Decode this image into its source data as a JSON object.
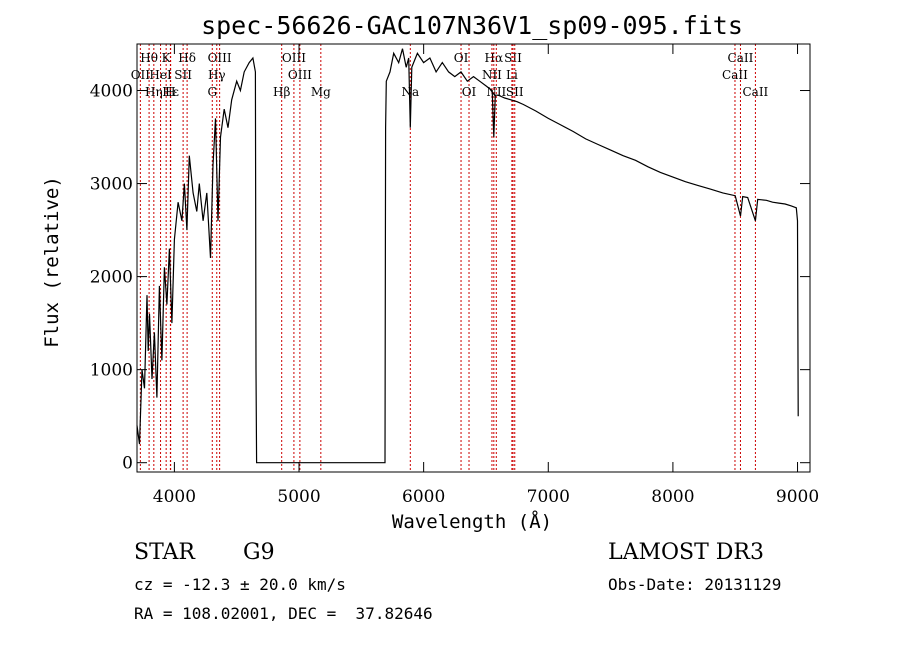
{
  "chart_data": {
    "type": "line",
    "title": "spec-56626-GAC107N36V1_sp09-095.fits",
    "xlabel": "Wavelength (Å)",
    "ylabel": "Flux (relative)",
    "xlim": [
      3700,
      9100
    ],
    "ylim": [
      -100,
      4500
    ],
    "xticks": [
      4000,
      5000,
      6000,
      7000,
      8000,
      9000
    ],
    "yticks": [
      0,
      1000,
      2000,
      3000,
      4000
    ],
    "series": [
      {
        "name": "flux",
        "points": [
          [
            3700,
            400
          ],
          [
            3720,
            200
          ],
          [
            3740,
            1000
          ],
          [
            3760,
            800
          ],
          [
            3780,
            1800
          ],
          [
            3790,
            1200
          ],
          [
            3800,
            1600
          ],
          [
            3820,
            900
          ],
          [
            3840,
            1400
          ],
          [
            3860,
            700
          ],
          [
            3880,
            1900
          ],
          [
            3900,
            1100
          ],
          [
            3920,
            2100
          ],
          [
            3940,
            1700
          ],
          [
            3960,
            2300
          ],
          [
            3980,
            1500
          ],
          [
            4000,
            2400
          ],
          [
            4030,
            2800
          ],
          [
            4060,
            2600
          ],
          [
            4080,
            3000
          ],
          [
            4100,
            2500
          ],
          [
            4120,
            3300
          ],
          [
            4150,
            2900
          ],
          [
            4180,
            2700
          ],
          [
            4200,
            3000
          ],
          [
            4230,
            2600
          ],
          [
            4260,
            2900
          ],
          [
            4290,
            2200
          ],
          [
            4310,
            3200
          ],
          [
            4330,
            3700
          ],
          [
            4350,
            2600
          ],
          [
            4370,
            3500
          ],
          [
            4400,
            3800
          ],
          [
            4430,
            3600
          ],
          [
            4460,
            3900
          ],
          [
            4500,
            4100
          ],
          [
            4530,
            4000
          ],
          [
            4560,
            4200
          ],
          [
            4600,
            4300
          ],
          [
            4630,
            4350
          ],
          [
            4650,
            4200
          ],
          [
            4655,
            1000
          ],
          [
            4660,
            0
          ],
          [
            4665,
            0
          ],
          [
            5690,
            0
          ],
          [
            5695,
            3600
          ],
          [
            5700,
            4100
          ],
          [
            5730,
            4200
          ],
          [
            5760,
            4400
          ],
          [
            5800,
            4300
          ],
          [
            5830,
            4450
          ],
          [
            5860,
            4250
          ],
          [
            5880,
            4350
          ],
          [
            5893,
            3600
          ],
          [
            5905,
            4250
          ],
          [
            5950,
            4400
          ],
          [
            6000,
            4300
          ],
          [
            6050,
            4350
          ],
          [
            6100,
            4200
          ],
          [
            6150,
            4300
          ],
          [
            6200,
            4200
          ],
          [
            6250,
            4150
          ],
          [
            6300,
            4200
          ],
          [
            6350,
            4100
          ],
          [
            6400,
            4150
          ],
          [
            6450,
            4100
          ],
          [
            6500,
            4050
          ],
          [
            6550,
            4000
          ],
          [
            6563,
            3500
          ],
          [
            6575,
            3950
          ],
          [
            6600,
            3950
          ],
          [
            6650,
            3920
          ],
          [
            6700,
            3900
          ],
          [
            6750,
            3880
          ],
          [
            6800,
            3850
          ],
          [
            6900,
            3780
          ],
          [
            7000,
            3700
          ],
          [
            7100,
            3630
          ],
          [
            7200,
            3560
          ],
          [
            7300,
            3480
          ],
          [
            7400,
            3420
          ],
          [
            7500,
            3360
          ],
          [
            7600,
            3300
          ],
          [
            7700,
            3250
          ],
          [
            7800,
            3180
          ],
          [
            7900,
            3120
          ],
          [
            8000,
            3070
          ],
          [
            8100,
            3020
          ],
          [
            8200,
            2980
          ],
          [
            8300,
            2940
          ],
          [
            8400,
            2900
          ],
          [
            8500,
            2870
          ],
          [
            8542,
            2650
          ],
          [
            8560,
            2860
          ],
          [
            8600,
            2850
          ],
          [
            8662,
            2600
          ],
          [
            8680,
            2830
          ],
          [
            8750,
            2820
          ],
          [
            8800,
            2800
          ],
          [
            8850,
            2790
          ],
          [
            8900,
            2780
          ],
          [
            8950,
            2760
          ],
          [
            8990,
            2740
          ],
          [
            9000,
            2600
          ],
          [
            9005,
            500
          ]
        ]
      }
    ],
    "spectral_lines": [
      {
        "label": "Hθ",
        "wavelength": 3797,
        "row": 1
      },
      {
        "label": "K",
        "wavelength": 3934,
        "row": 1
      },
      {
        "label": "Hδ",
        "wavelength": 4102,
        "row": 1
      },
      {
        "label": "OIII",
        "wavelength": 4363,
        "row": 1
      },
      {
        "label": "OIII",
        "wavelength": 4959,
        "row": 1
      },
      {
        "label": "OI",
        "wavelength": 6300,
        "row": 1
      },
      {
        "label": "Hα",
        "wavelength": 6563,
        "row": 1
      },
      {
        "label": "SII",
        "wavelength": 6717,
        "row": 1
      },
      {
        "label": "CaII",
        "wavelength": 8542,
        "row": 1
      },
      {
        "label": "OII",
        "wavelength": 3727,
        "row": 2
      },
      {
        "label": "HeI",
        "wavelength": 3889,
        "row": 2
      },
      {
        "label": "SII",
        "wavelength": 4070,
        "row": 2
      },
      {
        "label": "Hγ",
        "wavelength": 4340,
        "row": 2
      },
      {
        "label": "OIII",
        "wavelength": 5007,
        "row": 2
      },
      {
        "label": "NII",
        "wavelength": 6548,
        "row": 2
      },
      {
        "label": "Li",
        "wavelength": 6708,
        "row": 2
      },
      {
        "label": "CaII",
        "wavelength": 8498,
        "row": 2
      },
      {
        "label": "Hε",
        "wavelength": 3970,
        "row": 3
      },
      {
        "label": "Hη",
        "wavelength": 3835,
        "row": 3
      },
      {
        "label": "H",
        "wavelength": 3968,
        "row": 3
      },
      {
        "label": "G",
        "wavelength": 4304,
        "row": 3
      },
      {
        "label": "Hβ",
        "wavelength": 4861,
        "row": 3
      },
      {
        "label": "Mg",
        "wavelength": 5175,
        "row": 3
      },
      {
        "label": "Na",
        "wavelength": 5893,
        "row": 3
      },
      {
        "label": "OI",
        "wavelength": 6364,
        "row": 3
      },
      {
        "label": "NII",
        "wavelength": 6583,
        "row": 3
      },
      {
        "label": "SII",
        "wavelength": 6731,
        "row": 3
      },
      {
        "label": "CaII",
        "wavelength": 8662,
        "row": 3
      }
    ],
    "line_color": "#000000",
    "marker_color": "#cc0000"
  },
  "info": {
    "object_class": "STAR",
    "subclass": "G9",
    "survey": "LAMOST DR3",
    "redshift": "cz = -12.3 ± 20.0 km/s",
    "obs_date": "Obs-Date: 20131129",
    "coords": "RA = 108.02001, DEC =  37.82646"
  }
}
